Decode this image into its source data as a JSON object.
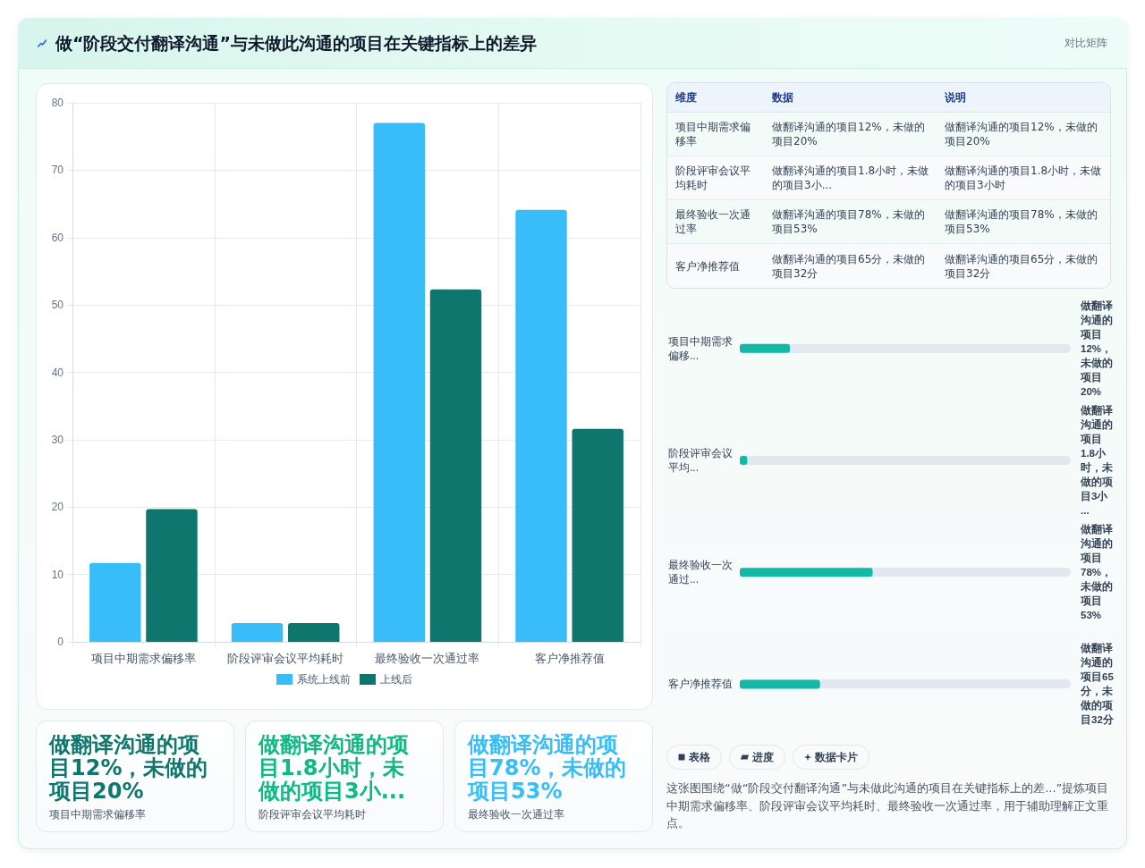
{
  "chart_data": [
    {
      "type": "other",
      "title": "做“阶段交付翻译沟通”与未做此沟通的项目在关键指标上的差异",
      "annotations": [
        "对比矩阵"
      ]
    },
    {
      "type": "bar",
      "categories": [
        "项目中期需求偏移率",
        "阶段评审会议平均耗时",
        "最终验收一次通过率",
        "客户净推荐值"
      ],
      "series": [
        {
          "name": "系统上线前",
          "color": "#38bdf8",
          "values": [
            11.7,
            2.8,
            77,
            64.1
          ]
        },
        {
          "name": "上线后",
          "color": "#0f766e",
          "values": [
            19.7,
            2.8,
            52.3,
            31.6
          ]
        }
      ],
      "ylim": [
        0,
        80
      ],
      "yticks": [
        0,
        10,
        20,
        30,
        40,
        50,
        60,
        70,
        80
      ],
      "grid": true,
      "legend": "bottom"
    },
    {
      "type": "other",
      "annotations": [
        "维度",
        "数据",
        "说明",
        "项目中期需求偏移率",
        "做翻译沟通的项目12%，未做的项目20%",
        "做翻译沟通的项目12%，未做的项目20%",
        "阶段评审会议平均耗时",
        "做翻译沟通的项目1.8小时，未做的项目3小...",
        "做翻译沟通的项目1.8小时，未做的项目3小时",
        "最终验收一次通过率",
        "做翻译沟通的项目78%，未做的项目53%",
        "做翻译沟通的项目78%，未做的项目53%",
        "客户净推荐值",
        "做翻译沟通的项目65分，未做的项目32分",
        "做翻译沟通的项目65分，未做的项目32分"
      ]
    },
    {
      "type": "bar",
      "orientation": "horizontal",
      "categories": [
        "项目中期需求偏移...",
        "阶段评审会议平均...",
        "最终验收一次通过...",
        "客户净推荐值"
      ],
      "values": [
        20,
        3,
        53,
        32
      ],
      "xlim": [
        0,
        132
      ],
      "tick_labels": "y",
      "color": "#14b8a6",
      "value_labels": [
        "做翻译沟通的项目12%，未做的项目20%",
        "做翻译沟通的项目1.8小时，未做的项目3小...",
        "做翻译沟通的项目78%，未做的项目53%",
        "做翻译沟通的项目65分，未做的项目32分"
      ]
    },
    {
      "type": "other",
      "annotations": [
        "做翻译沟通的项目12%，未做的项目20%",
        "项目中期需求偏移率",
        "做翻译沟通的项目1.8小时，未做的项目3小...",
        "阶段评审会议平均耗时",
        "做翻译沟通的项目78%，未做的项目53%",
        "最终验收一次通过率"
      ],
      "colors": [
        "#0f766e",
        "#10b981",
        "#38bdf8"
      ]
    },
    {
      "type": "other",
      "annotations": [
        "表格",
        "进度",
        "数据卡片",
        "这张图围绕“做“阶段交付翻译沟通”与未做此沟通的项目在关键指标上的差...”提炼项目中期需求偏移率、阶段评审会议平均耗时、最终验收一次通过率，用于辅助理解正文重点。"
      ]
    }
  ]
}
